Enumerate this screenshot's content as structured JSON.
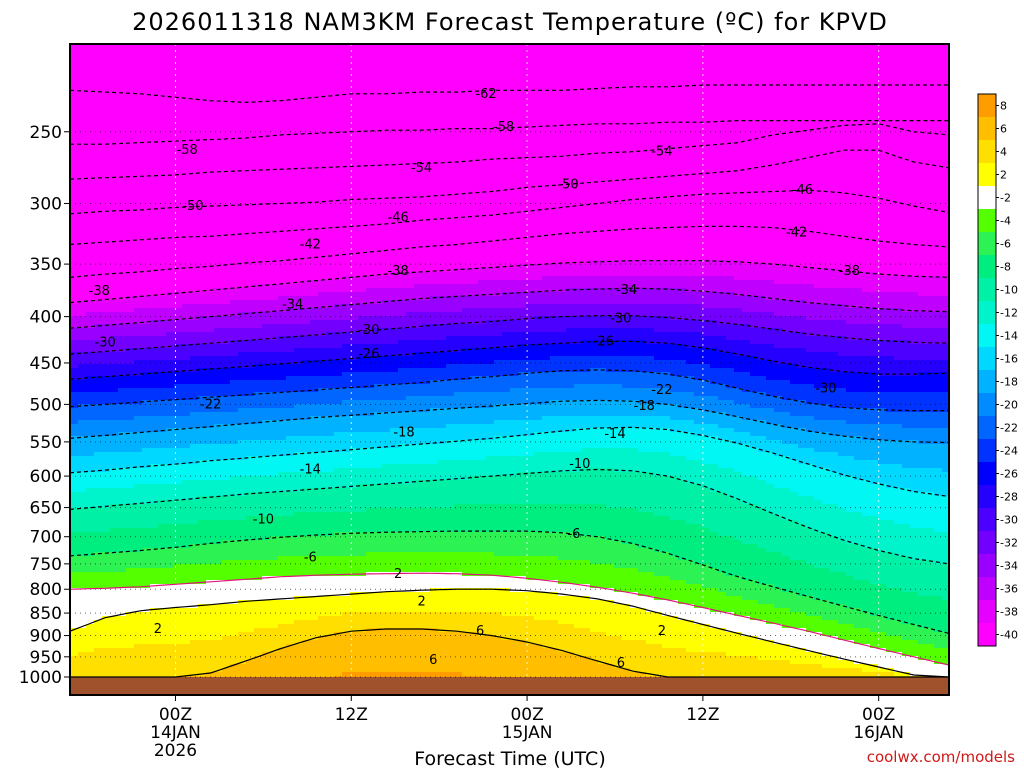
{
  "chart_data": {
    "type": "heatmap",
    "title": "2026011318 NAM3KM Forecast Temperature (ºC) for KPVD",
    "xlabel": "Forecast Time (UTC)",
    "ylabel": "",
    "source": "coolwx.com/models",
    "y_axis": {
      "scale": "log-pressure",
      "range": [
        1000,
        200
      ],
      "ticks": [
        250,
        300,
        350,
        400,
        450,
        500,
        550,
        600,
        650,
        700,
        750,
        800,
        850,
        900,
        950,
        1000
      ]
    },
    "x_axis": {
      "range": [
        -9,
        66
      ],
      "ticks": [
        {
          "x": 0,
          "lines": [
            "00Z",
            "14JAN",
            "2026"
          ]
        },
        {
          "x": 15,
          "lines": [
            "12Z"
          ]
        },
        {
          "x": 30,
          "lines": [
            "00Z",
            "15JAN"
          ]
        },
        {
          "x": 45,
          "lines": [
            "12Z"
          ]
        },
        {
          "x": 60,
          "lines": [
            "00Z",
            "16JAN"
          ]
        }
      ]
    },
    "colorbar": {
      "bins": [
        {
          "lo": 8,
          "hi": 10,
          "color": "#ff9d00"
        },
        {
          "lo": 6,
          "hi": 8,
          "color": "#ffbe00"
        },
        {
          "lo": 4,
          "hi": 6,
          "color": "#ffdf00"
        },
        {
          "lo": 2,
          "hi": 4,
          "color": "#ffff00"
        },
        {
          "lo": -2,
          "hi": 2,
          "color": "#ffffff"
        },
        {
          "lo": -4,
          "hi": -2,
          "color": "#54ff00"
        },
        {
          "lo": -6,
          "hi": -4,
          "color": "#2df254"
        },
        {
          "lo": -8,
          "hi": -6,
          "color": "#00ee7f"
        },
        {
          "lo": -10,
          "hi": -8,
          "color": "#00f1a6"
        },
        {
          "lo": -12,
          "hi": -10,
          "color": "#00f4cc"
        },
        {
          "lo": -14,
          "hi": -12,
          "color": "#00f7f3"
        },
        {
          "lo": -16,
          "hi": -14,
          "color": "#00d8ff"
        },
        {
          "lo": -18,
          "hi": -16,
          "color": "#00b2ff"
        },
        {
          "lo": -20,
          "hi": -18,
          "color": "#008cff"
        },
        {
          "lo": -22,
          "hi": -20,
          "color": "#0066ff"
        },
        {
          "lo": -24,
          "hi": -22,
          "color": "#0033ff"
        },
        {
          "lo": -26,
          "hi": -24,
          "color": "#0000ff"
        },
        {
          "lo": -28,
          "hi": -26,
          "color": "#2600ff"
        },
        {
          "lo": -30,
          "hi": -28,
          "color": "#4c00ff"
        },
        {
          "lo": -32,
          "hi": -30,
          "color": "#7300ff"
        },
        {
          "lo": -34,
          "hi": -32,
          "color": "#9900ff"
        },
        {
          "lo": -36,
          "hi": -34,
          "color": "#bf00ff"
        },
        {
          "lo": -38,
          "hi": -36,
          "color": "#e600ff"
        },
        {
          "lo": -40,
          "hi": -38,
          "color": "#ff00ff"
        }
      ],
      "ticks": [
        8,
        6,
        4,
        2,
        -2,
        -4,
        -6,
        -8,
        -10,
        -12,
        -14,
        -16,
        -18,
        -20,
        -22,
        -24,
        -26,
        -28,
        -30,
        -32,
        -34,
        -36,
        -38,
        -40
      ]
    },
    "isotherm_heights": {
      "times": [
        -9,
        -6,
        -3,
        0,
        3,
        6,
        9,
        12,
        15,
        18,
        21,
        24,
        27,
        30,
        33,
        36,
        39,
        42,
        45,
        48,
        51,
        54,
        57,
        60,
        63,
        66
      ],
      "levels": [
        {
          "t": -62,
          "p": [
            225,
            226,
            227,
            229,
            231,
            232,
            231,
            229,
            227,
            227,
            226,
            226,
            225,
            225,
            225,
            224,
            223,
            223,
            222,
            222,
            222,
            222,
            222,
            222,
            222,
            222
          ]
        },
        {
          "t": -58,
          "p": [
            258,
            258,
            257,
            256,
            255,
            254,
            252,
            251,
            250,
            249,
            249,
            248,
            248,
            247,
            246,
            245,
            245,
            244,
            244,
            243,
            243,
            243,
            243,
            243,
            243,
            243
          ]
        },
        {
          "t": -54,
          "p": [
            282,
            281,
            280,
            279,
            277,
            276,
            275,
            274,
            273,
            272,
            271,
            270,
            268,
            267,
            266,
            264,
            263,
            261,
            259,
            257,
            252,
            249,
            246,
            245,
            250,
            252
          ]
        },
        {
          "t": -50,
          "p": [
            308,
            306,
            305,
            303,
            302,
            301,
            300,
            299,
            297,
            296,
            295,
            293,
            291,
            288,
            286,
            284,
            282,
            280,
            278,
            276,
            272,
            267,
            262,
            262,
            270,
            274
          ]
        },
        {
          "t": -46,
          "p": [
            333,
            331,
            329,
            327,
            326,
            324,
            322,
            320,
            318,
            316,
            313,
            311,
            309,
            306,
            303,
            300,
            297,
            295,
            293,
            292,
            291,
            290,
            292,
            296,
            302,
            307
          ]
        },
        {
          "t": -42,
          "p": [
            362,
            359,
            357,
            354,
            352,
            349,
            347,
            344,
            341,
            338,
            335,
            333,
            330,
            327,
            324,
            322,
            320,
            319,
            318,
            318,
            319,
            322,
            326,
            330,
            333,
            335
          ]
        },
        {
          "t": -38,
          "p": [
            386,
            383,
            380,
            377,
            374,
            371,
            368,
            365,
            362,
            359,
            357,
            355,
            353,
            351,
            349,
            348,
            347,
            347,
            347,
            348,
            350,
            353,
            356,
            359,
            361,
            362
          ]
        },
        {
          "t": -34,
          "p": [
            412,
            409,
            406,
            403,
            400,
            397,
            394,
            391,
            388,
            385,
            382,
            380,
            378,
            376,
            374,
            373,
            372,
            373,
            375,
            378,
            382,
            386,
            389,
            392,
            394,
            395
          ]
        },
        {
          "t": -30,
          "p": [
            440,
            437,
            434,
            431,
            428,
            425,
            422,
            419,
            416,
            413,
            410,
            407,
            405,
            402,
            400,
            399,
            399,
            401,
            404,
            408,
            413,
            418,
            422,
            425,
            427,
            428
          ]
        },
        {
          "t": -26,
          "p": [
            469,
            466,
            463,
            460,
            457,
            454,
            451,
            448,
            445,
            442,
            439,
            436,
            433,
            430,
            428,
            426,
            426,
            428,
            433,
            440,
            448,
            455,
            460,
            463,
            463,
            462
          ]
        },
        {
          "t": -22,
          "p": [
            503,
            500,
            497,
            494,
            491,
            488,
            485,
            482,
            479,
            476,
            473,
            469,
            466,
            462,
            459,
            458,
            459,
            463,
            470,
            480,
            490,
            498,
            504,
            507,
            508,
            508
          ]
        },
        {
          "t": -18,
          "p": [
            545,
            541,
            537,
            533,
            529,
            525,
            521,
            517,
            514,
            511,
            508,
            505,
            502,
            499,
            496,
            495,
            496,
            500,
            507,
            516,
            526,
            535,
            542,
            547,
            550,
            551
          ]
        },
        {
          "t": -14,
          "p": [
            595,
            591,
            586,
            582,
            577,
            573,
            569,
            565,
            561,
            557,
            553,
            549,
            545,
            540,
            535,
            531,
            530,
            533,
            541,
            552,
            566,
            582,
            598,
            612,
            624,
            632
          ]
        },
        {
          "t": -10,
          "p": [
            653,
            648,
            643,
            638,
            633,
            628,
            624,
            620,
            616,
            612,
            608,
            604,
            600,
            596,
            592,
            590,
            592,
            600,
            615,
            636,
            660,
            684,
            706,
            725,
            740,
            750
          ]
        },
        {
          "t": -6,
          "p": [
            735,
            730,
            725,
            719,
            712,
            706,
            701,
            697,
            694,
            692,
            691,
            690,
            690,
            690,
            693,
            700,
            712,
            730,
            752,
            775,
            795,
            815,
            835,
            855,
            875,
            895
          ]
        },
        {
          "t": -2,
          "p": [
            800,
            798,
            795,
            790,
            785,
            780,
            775,
            772,
            770,
            769,
            768,
            769,
            772,
            778,
            786,
            796,
            808,
            822,
            838,
            855,
            872,
            890,
            910,
            930,
            950,
            970
          ]
        },
        {
          "t": 2,
          "p": [
            890,
            860,
            845,
            838,
            832,
            825,
            820,
            815,
            810,
            805,
            802,
            800,
            800,
            803,
            810,
            820,
            835,
            855,
            875,
            895,
            915,
            935,
            955,
            975,
            995,
            1000
          ]
        },
        {
          "t": 6,
          "p": [
            1000,
            1000,
            1000,
            1000,
            990,
            960,
            930,
            905,
            890,
            885,
            885,
            890,
            900,
            915,
            935,
            960,
            985,
            1000,
            1000,
            1000,
            1000,
            1000,
            1000,
            1000,
            1000,
            1000
          ]
        }
      ]
    },
    "contour_labels": [
      {
        "text": "-62",
        "x": 26.5,
        "p": 227
      },
      {
        "text": "-58",
        "x": 1.0,
        "p": 262
      },
      {
        "text": "-58",
        "x": 28.0,
        "p": 247
      },
      {
        "text": "-54",
        "x": 21.0,
        "p": 274
      },
      {
        "text": "-54",
        "x": 41.5,
        "p": 263
      },
      {
        "text": "-50",
        "x": 1.5,
        "p": 302
      },
      {
        "text": "-50",
        "x": 33.5,
        "p": 286
      },
      {
        "text": "-46",
        "x": 19.0,
        "p": 311
      },
      {
        "text": "-46",
        "x": 53.5,
        "p": 290
      },
      {
        "text": "-42",
        "x": 11.5,
        "p": 333
      },
      {
        "text": "-42",
        "x": 53.0,
        "p": 323
      },
      {
        "text": "-38",
        "x": -6.5,
        "p": 375
      },
      {
        "text": "-38",
        "x": 19.0,
        "p": 356
      },
      {
        "text": "-38",
        "x": 57.5,
        "p": 356
      },
      {
        "text": "-34",
        "x": 10.0,
        "p": 388
      },
      {
        "text": "-34",
        "x": 38.5,
        "p": 374
      },
      {
        "text": "-30",
        "x": -6.0,
        "p": 427
      },
      {
        "text": "-30",
        "x": 16.5,
        "p": 414
      },
      {
        "text": "-30",
        "x": 38.0,
        "p": 402
      },
      {
        "text": "-30",
        "x": 55.5,
        "p": 480
      },
      {
        "text": "-26",
        "x": 16.5,
        "p": 440
      },
      {
        "text": "-26",
        "x": 36.5,
        "p": 426
      },
      {
        "text": "-22",
        "x": 3.0,
        "p": 500
      },
      {
        "text": "-22",
        "x": 41.5,
        "p": 482
      },
      {
        "text": "-18",
        "x": 19.5,
        "p": 537
      },
      {
        "text": "-18",
        "x": 40.0,
        "p": 502
      },
      {
        "text": "-14",
        "x": 11.5,
        "p": 590
      },
      {
        "text": "-14",
        "x": 37.5,
        "p": 539
      },
      {
        "text": "-10",
        "x": 7.5,
        "p": 670
      },
      {
        "text": "-10",
        "x": 34.5,
        "p": 582
      },
      {
        "text": "-6",
        "x": 11.5,
        "p": 738
      },
      {
        "text": "-6",
        "x": 34.0,
        "p": 695
      },
      {
        "text": "2",
        "x": 19.0,
        "p": 770
      },
      {
        "text": "2",
        "x": 21.0,
        "p": 825
      },
      {
        "text": "2",
        "x": -1.5,
        "p": 885
      },
      {
        "text": "2",
        "x": 41.5,
        "p": 890
      },
      {
        "text": "6",
        "x": 26.0,
        "p": 890
      },
      {
        "text": "6",
        "x": 22.0,
        "p": 958
      },
      {
        "text": "6",
        "x": 38.0,
        "p": 965
      }
    ]
  }
}
